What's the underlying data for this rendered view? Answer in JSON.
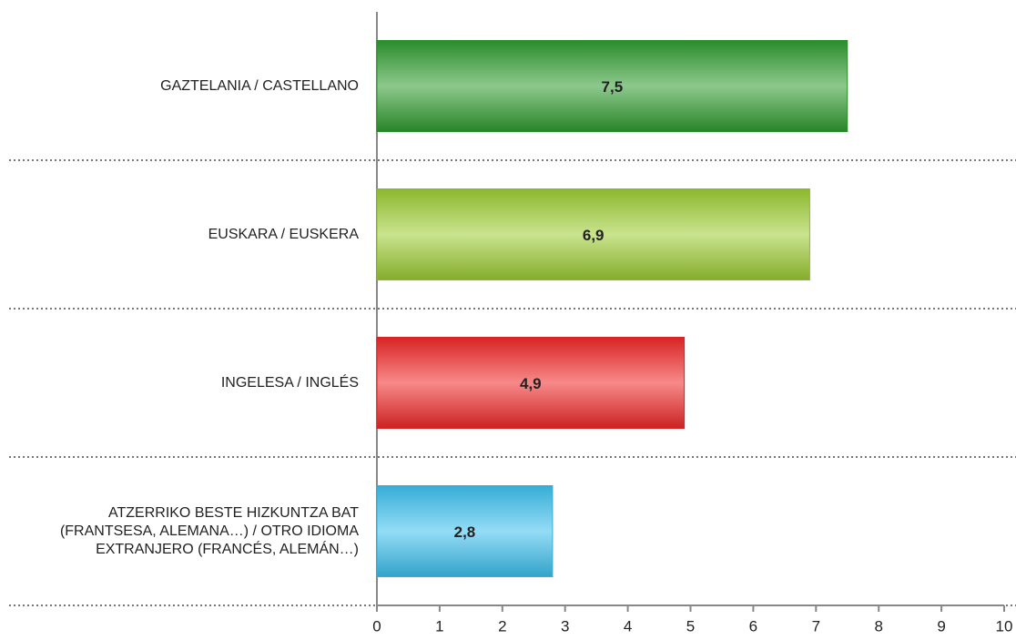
{
  "chart_data": {
    "type": "barh",
    "categories": [
      "GAZTELANIA / CASTELLANO",
      "EUSKARA / EUSKERA",
      "INGELESA / INGLÉS",
      "ATZERRIKO BESTE HIZKUNTZA BAT (FRANTSESA, ALEMANA…) / OTRO IDIOMA EXTRANJERO (FRANCÉS, ALEMÁN…)"
    ],
    "values": [
      7.5,
      6.9,
      4.9,
      2.8
    ],
    "value_labels": [
      "7,5",
      "6,9",
      "4,9",
      "2,8"
    ],
    "colors": [
      "#2f9b2f",
      "#9ccc32",
      "#f02828",
      "#3cc0ee"
    ],
    "xlim": [
      0,
      10
    ],
    "xticks": [
      0,
      1,
      2,
      3,
      4,
      5,
      6,
      7,
      8,
      9,
      10
    ]
  }
}
